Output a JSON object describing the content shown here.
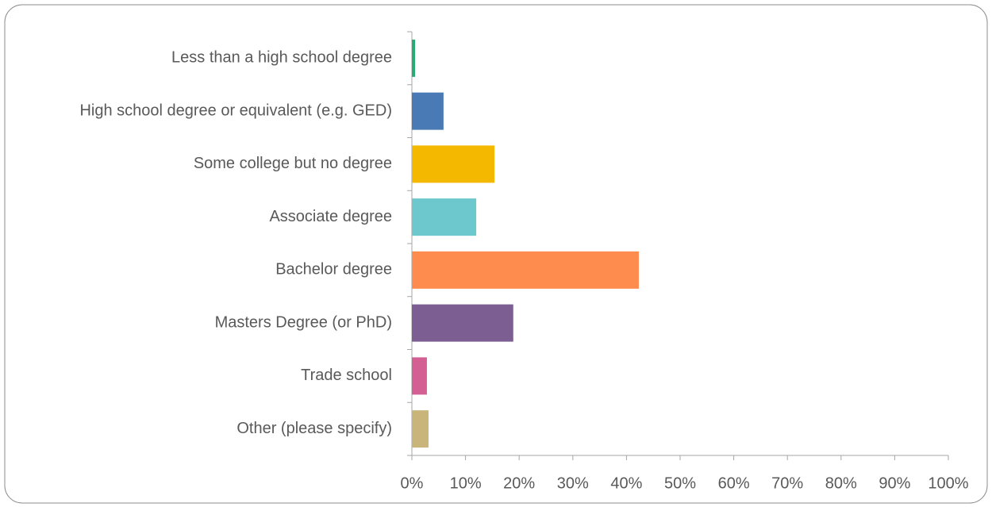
{
  "chart_data": {
    "type": "bar",
    "orientation": "horizontal",
    "categories": [
      "Less than a high school degree",
      "High school degree or equivalent (e.g. GED)",
      "Some college but no degree",
      "Associate degree",
      "Bachelor degree",
      "Masters Degree (or PhD)",
      "Trade school",
      "Other (please specify)"
    ],
    "values": [
      0.6,
      5.9,
      15.4,
      12.0,
      42.3,
      18.9,
      2.8,
      3.1
    ],
    "colors": [
      "#2aa876",
      "#4a7ab5",
      "#f5b800",
      "#6cc8cc",
      "#ff8c4f",
      "#7c5e93",
      "#d45f93",
      "#c9b47a"
    ],
    "xlim": [
      0,
      100
    ],
    "xticks": [
      {
        "value": 0,
        "label": "0%"
      },
      {
        "value": 10,
        "label": "10%"
      },
      {
        "value": 20,
        "label": "20%"
      },
      {
        "value": 30,
        "label": "30%"
      },
      {
        "value": 40,
        "label": "40%"
      },
      {
        "value": 50,
        "label": "50%"
      },
      {
        "value": 60,
        "label": "60%"
      },
      {
        "value": 70,
        "label": "70%"
      },
      {
        "value": 80,
        "label": "80%"
      },
      {
        "value": 90,
        "label": "90%"
      },
      {
        "value": 100,
        "label": "100%"
      }
    ],
    "grid": false
  }
}
